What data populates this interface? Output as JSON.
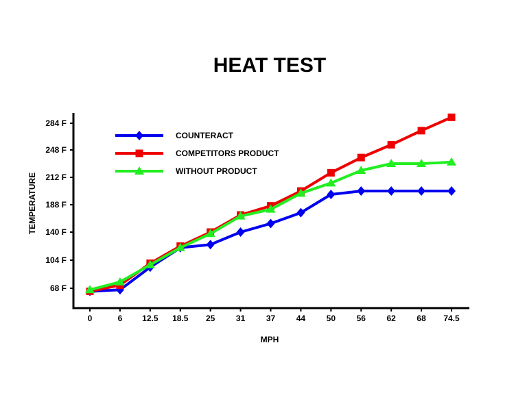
{
  "chart_data": {
    "type": "line",
    "title": "HEAT TEST",
    "xlabel": "MPH",
    "ylabel": "TEMPERATURE",
    "categories": [
      "0",
      "6",
      "12.5",
      "18.5",
      "25",
      "31",
      "37",
      "44",
      "50",
      "56",
      "62",
      "68",
      "74.5"
    ],
    "y_tick_labels": [
      "68 F",
      "104 F",
      "140 F",
      "188 F",
      "212 F",
      "248 F",
      "284 F"
    ],
    "y_tick_values": [
      68,
      104,
      140,
      188,
      212,
      248,
      284
    ],
    "ylim": [
      44,
      308
    ],
    "grid": false,
    "legend_position": "top-left",
    "series": [
      {
        "name": "COUNTERACT",
        "color": "#0000ee",
        "marker": "diamond",
        "values": [
          64,
          66,
          95,
          120,
          124,
          140,
          155,
          174,
          197,
          200,
          200,
          200,
          200
        ]
      },
      {
        "name": "COMPETITORS PRODUCT",
        "color": "#ee0000",
        "marker": "square",
        "values": [
          64,
          72,
          100,
          122,
          140,
          170,
          186,
          200,
          218,
          238,
          255,
          274,
          292
        ]
      },
      {
        "name": "WITHOUT PRODUCT",
        "color": "#22ee22",
        "marker": "triangle",
        "values": [
          66,
          76,
          98,
          120,
          138,
          168,
          180,
          198,
          207,
          221,
          230,
          230,
          232
        ]
      }
    ]
  }
}
